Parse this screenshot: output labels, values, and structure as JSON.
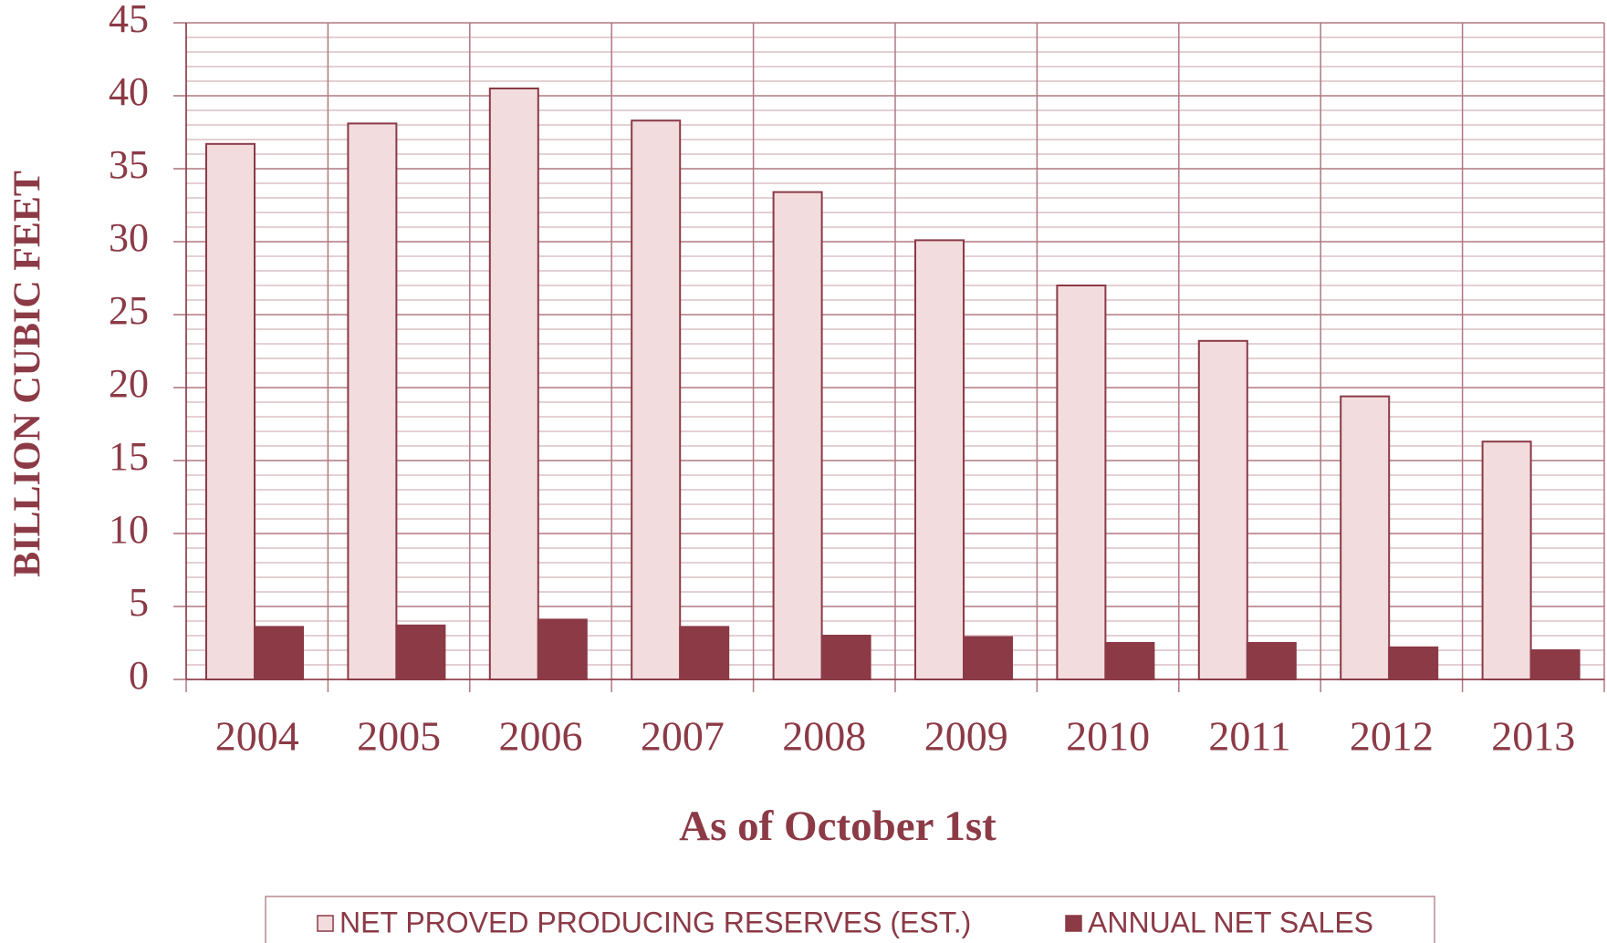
{
  "chart_data": {
    "type": "bar",
    "y_axis_label": "BILLION CUBIC FEET",
    "x_axis_label": "As of October 1st",
    "categories": [
      "2004",
      "2005",
      "2006",
      "2007",
      "2008",
      "2009",
      "2010",
      "2011",
      "2012",
      "2013"
    ],
    "series": [
      {
        "name": "NET PROVED PRODUCING RESERVES (EST.)",
        "color": "#f2dcde",
        "values": [
          36.7,
          38.1,
          40.5,
          38.3,
          33.4,
          30.1,
          27.0,
          23.2,
          19.4,
          16.3
        ]
      },
      {
        "name": "ANNUAL NET SALES",
        "color": "#8b3a46",
        "values": [
          3.6,
          3.7,
          4.1,
          3.6,
          3.0,
          2.9,
          2.5,
          2.5,
          2.2,
          2.0
        ]
      }
    ],
    "ylim": [
      0,
      45
    ],
    "yticks": [
      0,
      5,
      10,
      15,
      20,
      25,
      30,
      35,
      40,
      45
    ],
    "grid": true,
    "minor_grid": 1,
    "legend": "bottom"
  }
}
